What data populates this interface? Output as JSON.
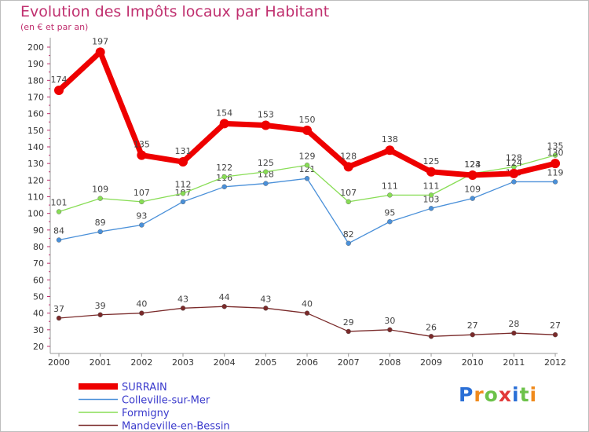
{
  "title": "Evolution des Impôts locaux par Habitant",
  "subtitle": "(en € et par an)",
  "logo_text": "Proxiti",
  "chart_data": {
    "type": "line",
    "title": "Evolution des Impôts locaux par Habitant",
    "subtitle": "(en € et par an)",
    "xlabel": "",
    "ylabel": "",
    "x": [
      "2000",
      "2001",
      "2002",
      "2003",
      "2004",
      "2005",
      "2006",
      "2007",
      "2008",
      "2009",
      "2010",
      "2011",
      "2012"
    ],
    "ylim": [
      20,
      200
    ],
    "yticks": [
      20,
      30,
      40,
      50,
      60,
      70,
      80,
      90,
      100,
      110,
      120,
      130,
      140,
      150,
      160,
      170,
      180,
      190,
      200
    ],
    "grid": false,
    "legend_position": "bottom-left",
    "series": [
      {
        "name": "SURRAIN",
        "color": "#ee0000",
        "values": [
          174,
          197,
          135,
          131,
          154,
          153,
          150,
          128,
          138,
          125,
          123,
          124,
          130
        ]
      },
      {
        "name": "Colleville-sur-Mer",
        "color": "#4a90d9",
        "values": [
          84,
          89,
          93,
          107,
          116,
          118,
          121,
          82,
          95,
          103,
          109,
          119,
          119
        ]
      },
      {
        "name": "Formigny",
        "color": "#88dd55",
        "values": [
          101,
          109,
          107,
          112,
          122,
          125,
          129,
          107,
          111,
          111,
          124,
          128,
          135
        ]
      },
      {
        "name": "Mandeville-en-Bessin",
        "color": "#7a2a2a",
        "values": [
          37,
          39,
          40,
          43,
          44,
          43,
          40,
          29,
          30,
          26,
          27,
          28,
          27
        ]
      }
    ]
  }
}
